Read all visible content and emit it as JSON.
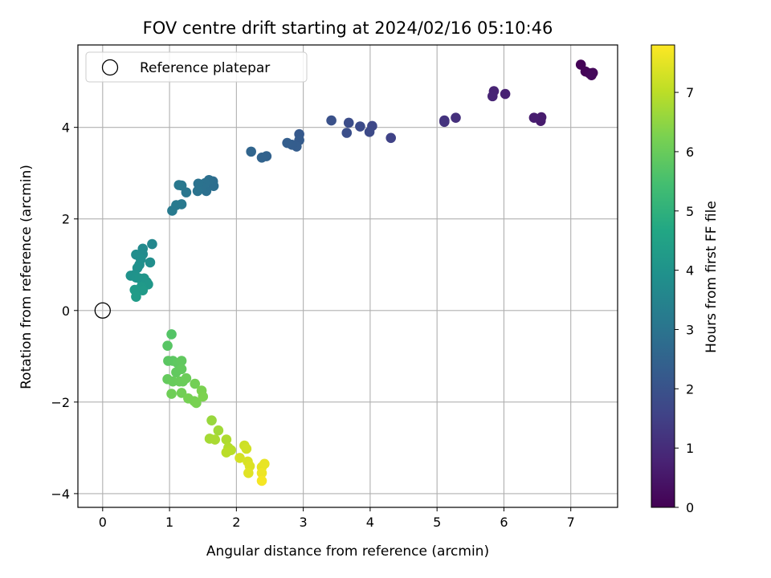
{
  "chart_data": {
    "type": "scatter",
    "title": "FOV centre drift starting at 2024/02/16 05:10:46",
    "xlabel": "Angular distance from reference (arcmin)",
    "ylabel": "Rotation from reference (arcmin)",
    "xlim": [
      -0.37,
      7.7
    ],
    "ylim": [
      -4.3,
      5.8
    ],
    "xticks": [
      0,
      1,
      2,
      3,
      4,
      5,
      6,
      7
    ],
    "yticks": [
      -4,
      -2,
      0,
      2,
      4
    ],
    "xtick_labels": [
      "0",
      "1",
      "2",
      "3",
      "4",
      "5",
      "6",
      "7"
    ],
    "ytick_labels": [
      "−4",
      "−2",
      "0",
      "2",
      "4"
    ],
    "grid": true,
    "legend": {
      "placement": "top-left",
      "entries": [
        "Reference platepar"
      ]
    },
    "reference_point": {
      "x": 0,
      "y": 0,
      "marker": "open-circle",
      "color": "#000000"
    },
    "colorbar": {
      "label": "Hours from first FF file",
      "colormap": "viridis",
      "range": [
        0,
        7.8
      ],
      "ticks": [
        0,
        1,
        2,
        3,
        4,
        5,
        6,
        7
      ],
      "tick_labels": [
        "0",
        "1",
        "2",
        "3",
        "4",
        "5",
        "6",
        "7"
      ]
    },
    "points": [
      {
        "x": 7.15,
        "y": 5.37,
        "c": 0.05
      },
      {
        "x": 7.22,
        "y": 5.22,
        "c": 0.1
      },
      {
        "x": 7.28,
        "y": 5.18,
        "c": 0.12
      },
      {
        "x": 7.33,
        "y": 5.19,
        "c": 0.15
      },
      {
        "x": 7.31,
        "y": 5.14,
        "c": 0.18
      },
      {
        "x": 6.55,
        "y": 4.14,
        "c": 0.6
      },
      {
        "x": 6.56,
        "y": 4.22,
        "c": 0.62
      },
      {
        "x": 6.45,
        "y": 4.21,
        "c": 0.65
      },
      {
        "x": 6.02,
        "y": 4.73,
        "c": 0.75
      },
      {
        "x": 5.85,
        "y": 4.79,
        "c": 0.8
      },
      {
        "x": 5.83,
        "y": 4.68,
        "c": 0.82
      },
      {
        "x": 5.28,
        "y": 4.21,
        "c": 1.1
      },
      {
        "x": 5.11,
        "y": 4.12,
        "c": 1.15
      },
      {
        "x": 5.11,
        "y": 4.15,
        "c": 1.18
      },
      {
        "x": 4.31,
        "y": 3.77,
        "c": 1.55
      },
      {
        "x": 4.03,
        "y": 4.03,
        "c": 1.7
      },
      {
        "x": 3.99,
        "y": 3.9,
        "c": 1.75
      },
      {
        "x": 3.85,
        "y": 4.02,
        "c": 1.8
      },
      {
        "x": 3.68,
        "y": 4.1,
        "c": 1.85
      },
      {
        "x": 3.65,
        "y": 3.88,
        "c": 1.9
      },
      {
        "x": 3.42,
        "y": 4.15,
        "c": 1.95
      },
      {
        "x": 2.94,
        "y": 3.85,
        "c": 2.2
      },
      {
        "x": 2.94,
        "y": 3.72,
        "c": 2.25
      },
      {
        "x": 2.9,
        "y": 3.58,
        "c": 2.3
      },
      {
        "x": 2.83,
        "y": 3.62,
        "c": 2.32
      },
      {
        "x": 2.76,
        "y": 3.66,
        "c": 2.35
      },
      {
        "x": 2.45,
        "y": 3.37,
        "c": 2.45
      },
      {
        "x": 2.38,
        "y": 3.34,
        "c": 2.5
      },
      {
        "x": 2.22,
        "y": 3.47,
        "c": 2.55
      },
      {
        "x": 1.65,
        "y": 2.82,
        "c": 2.8
      },
      {
        "x": 1.66,
        "y": 2.72,
        "c": 2.82
      },
      {
        "x": 1.59,
        "y": 2.85,
        "c": 2.85
      },
      {
        "x": 1.55,
        "y": 2.61,
        "c": 2.88
      },
      {
        "x": 1.53,
        "y": 2.78,
        "c": 2.9
      },
      {
        "x": 1.48,
        "y": 2.7,
        "c": 2.92
      },
      {
        "x": 1.43,
        "y": 2.77,
        "c": 2.95
      },
      {
        "x": 1.42,
        "y": 2.61,
        "c": 2.97
      },
      {
        "x": 1.25,
        "y": 2.58,
        "c": 3.05
      },
      {
        "x": 1.18,
        "y": 2.73,
        "c": 3.1
      },
      {
        "x": 1.14,
        "y": 2.74,
        "c": 3.12
      },
      {
        "x": 1.18,
        "y": 2.32,
        "c": 3.15
      },
      {
        "x": 1.1,
        "y": 2.3,
        "c": 3.18
      },
      {
        "x": 1.04,
        "y": 2.18,
        "c": 3.2
      },
      {
        "x": 0.74,
        "y": 1.45,
        "c": 3.6
      },
      {
        "x": 0.6,
        "y": 1.35,
        "c": 3.7
      },
      {
        "x": 0.6,
        "y": 1.23,
        "c": 3.75
      },
      {
        "x": 0.5,
        "y": 1.22,
        "c": 3.8
      },
      {
        "x": 0.57,
        "y": 1.12,
        "c": 3.82
      },
      {
        "x": 0.71,
        "y": 1.05,
        "c": 3.85
      },
      {
        "x": 0.55,
        "y": 1.0,
        "c": 3.88
      },
      {
        "x": 0.52,
        "y": 0.93,
        "c": 3.9
      },
      {
        "x": 0.48,
        "y": 0.78,
        "c": 3.95
      },
      {
        "x": 0.42,
        "y": 0.76,
        "c": 3.97
      },
      {
        "x": 0.5,
        "y": 0.72,
        "c": 4.0
      },
      {
        "x": 0.55,
        "y": 0.7,
        "c": 4.05
      },
      {
        "x": 0.62,
        "y": 0.7,
        "c": 4.08
      },
      {
        "x": 0.66,
        "y": 0.62,
        "c": 4.12
      },
      {
        "x": 0.68,
        "y": 0.57,
        "c": 4.15
      },
      {
        "x": 0.58,
        "y": 0.52,
        "c": 4.2
      },
      {
        "x": 0.6,
        "y": 0.44,
        "c": 4.25
      },
      {
        "x": 0.48,
        "y": 0.45,
        "c": 4.28
      },
      {
        "x": 0.5,
        "y": 0.3,
        "c": 4.32
      },
      {
        "x": 1.03,
        "y": -0.52,
        "c": 5.7
      },
      {
        "x": 0.97,
        "y": -0.77,
        "c": 5.75
      },
      {
        "x": 0.98,
        "y": -1.1,
        "c": 5.8
      },
      {
        "x": 1.05,
        "y": -1.1,
        "c": 5.82
      },
      {
        "x": 1.12,
        "y": -1.15,
        "c": 5.85
      },
      {
        "x": 1.18,
        "y": -1.1,
        "c": 5.88
      },
      {
        "x": 1.1,
        "y": -1.35,
        "c": 5.9
      },
      {
        "x": 1.18,
        "y": -1.28,
        "c": 5.92
      },
      {
        "x": 0.97,
        "y": -1.5,
        "c": 5.95
      },
      {
        "x": 1.05,
        "y": -1.55,
        "c": 5.98
      },
      {
        "x": 1.15,
        "y": -1.55,
        "c": 6.0
      },
      {
        "x": 1.2,
        "y": -1.55,
        "c": 6.02
      },
      {
        "x": 1.25,
        "y": -1.48,
        "c": 6.05
      },
      {
        "x": 1.03,
        "y": -1.82,
        "c": 6.1
      },
      {
        "x": 1.18,
        "y": -1.8,
        "c": 6.12
      },
      {
        "x": 1.38,
        "y": -1.6,
        "c": 6.15
      },
      {
        "x": 1.28,
        "y": -1.92,
        "c": 6.18
      },
      {
        "x": 1.37,
        "y": -1.98,
        "c": 6.2
      },
      {
        "x": 1.4,
        "y": -2.02,
        "c": 6.22
      },
      {
        "x": 1.48,
        "y": -1.75,
        "c": 6.25
      },
      {
        "x": 1.5,
        "y": -1.88,
        "c": 6.28
      },
      {
        "x": 1.63,
        "y": -2.4,
        "c": 6.6
      },
      {
        "x": 1.73,
        "y": -2.62,
        "c": 6.7
      },
      {
        "x": 1.6,
        "y": -2.8,
        "c": 6.75
      },
      {
        "x": 1.68,
        "y": -2.82,
        "c": 6.8
      },
      {
        "x": 1.85,
        "y": -2.82,
        "c": 6.85
      },
      {
        "x": 1.88,
        "y": -3.0,
        "c": 6.9
      },
      {
        "x": 1.92,
        "y": -3.05,
        "c": 6.95
      },
      {
        "x": 1.85,
        "y": -3.1,
        "c": 6.98
      },
      {
        "x": 2.12,
        "y": -2.95,
        "c": 7.2
      },
      {
        "x": 2.15,
        "y": -3.02,
        "c": 7.25
      },
      {
        "x": 2.05,
        "y": -3.22,
        "c": 7.3
      },
      {
        "x": 2.17,
        "y": -3.3,
        "c": 7.35
      },
      {
        "x": 2.2,
        "y": -3.4,
        "c": 7.4
      },
      {
        "x": 2.18,
        "y": -3.55,
        "c": 7.45
      },
      {
        "x": 2.38,
        "y": -3.42,
        "c": 7.5
      },
      {
        "x": 2.42,
        "y": -3.35,
        "c": 7.55
      },
      {
        "x": 2.38,
        "y": -3.55,
        "c": 7.6
      },
      {
        "x": 2.38,
        "y": -3.72,
        "c": 7.7
      }
    ]
  }
}
